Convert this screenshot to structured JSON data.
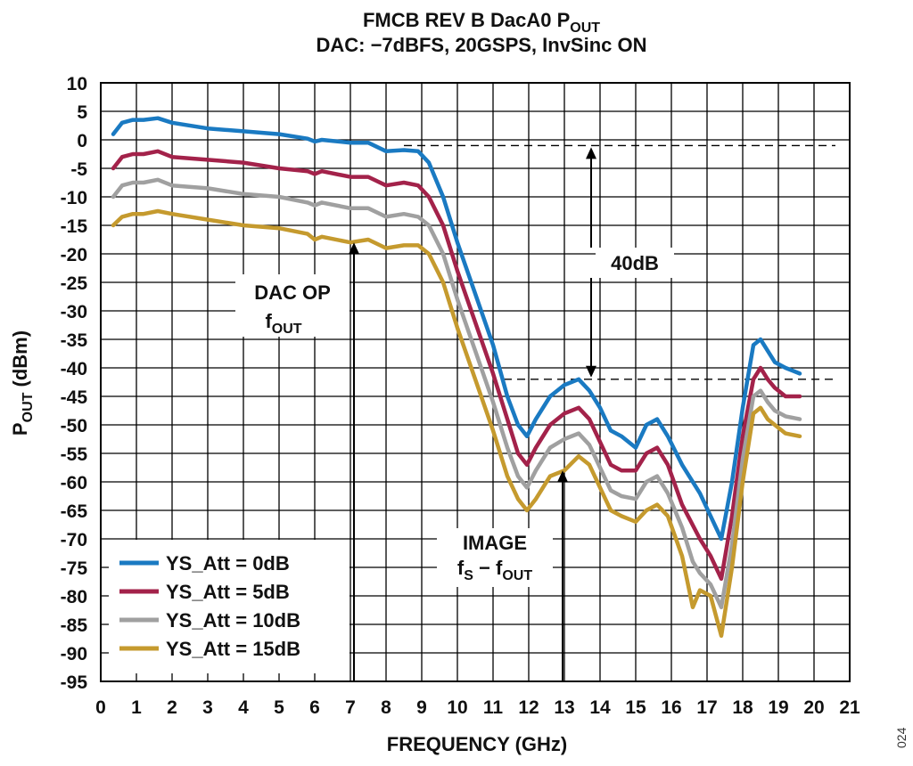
{
  "chart_data": {
    "type": "line",
    "title": "FMCB REV B DacA0 P",
    "title_sub": "OUT",
    "subtitle": "DAC: −7dBFS, 20GSPS, InvSinc ON",
    "xlabel": "FREQUENCY (GHz)",
    "ylabel_main": "P",
    "ylabel_sub": "OUT",
    "ylabel_unit": " (dBm)",
    "xlim": [
      0,
      21
    ],
    "ylim": [
      -95,
      10
    ],
    "xticks": [
      0,
      1,
      2,
      3,
      4,
      5,
      6,
      7,
      8,
      9,
      10,
      11,
      12,
      13,
      14,
      15,
      16,
      17,
      18,
      19,
      20,
      21
    ],
    "yticks": [
      10,
      5,
      0,
      -5,
      -10,
      -15,
      -20,
      -25,
      -30,
      -35,
      -40,
      -45,
      -50,
      -55,
      -60,
      -65,
      -70,
      -75,
      -80,
      -85,
      -90,
      -95
    ],
    "grid": true,
    "legend_position": "bottom-left",
    "series": [
      {
        "name": "YS_Att = 0dB",
        "color": "#1a7ac2",
        "x": [
          0.35,
          0.6,
          0.9,
          1.2,
          1.6,
          2,
          3,
          4,
          5,
          5.8,
          6,
          6.2,
          7,
          7.5,
          8,
          8.5,
          8.9,
          9.2,
          9.6,
          10,
          10.5,
          11,
          11.4,
          11.7,
          11.95,
          12.2,
          12.6,
          13,
          13.4,
          13.7,
          14,
          14.3,
          14.6,
          15,
          15.3,
          15.6,
          15.9,
          16.3,
          16.8,
          17.1,
          17.4,
          17.7,
          18,
          18.3,
          18.5,
          18.7,
          18.9,
          19.2,
          19.6
        ],
        "y": [
          1,
          3,
          3.5,
          3.5,
          3.8,
          3,
          2,
          1.5,
          1,
          0.2,
          -0.3,
          0,
          -0.5,
          -0.5,
          -2,
          -1.8,
          -2,
          -4,
          -10,
          -18,
          -27,
          -36,
          -45,
          -50,
          -52,
          -49,
          -45,
          -43,
          -42,
          -44,
          -47,
          -51,
          -52,
          -54,
          -50,
          -49,
          -52,
          -57,
          -62,
          -66,
          -70,
          -60,
          -47,
          -36,
          -35,
          -37,
          -39,
          -40,
          -41
        ]
      },
      {
        "name": "YS_Att = 5dB",
        "color": "#a3224a",
        "x": [
          0.35,
          0.6,
          0.9,
          1.2,
          1.6,
          2,
          3,
          4,
          5,
          5.8,
          6,
          6.2,
          7,
          7.5,
          8,
          8.5,
          8.9,
          9.2,
          9.6,
          10,
          10.5,
          11,
          11.4,
          11.7,
          11.95,
          12.2,
          12.6,
          13,
          13.4,
          13.7,
          14,
          14.3,
          14.6,
          15,
          15.3,
          15.6,
          15.9,
          16.3,
          16.8,
          17.1,
          17.4,
          17.7,
          18,
          18.3,
          18.5,
          18.7,
          18.9,
          19.2,
          19.6
        ],
        "y": [
          -5,
          -3,
          -2.5,
          -2.5,
          -2,
          -3,
          -3.5,
          -4,
          -5,
          -5.5,
          -6,
          -5.5,
          -6.5,
          -6.5,
          -8,
          -7.5,
          -8,
          -10,
          -15,
          -23,
          -32,
          -41,
          -49,
          -55,
          -57,
          -54,
          -50,
          -48,
          -47,
          -49,
          -53,
          -57,
          -58,
          -58,
          -55,
          -54,
          -57,
          -64,
          -70,
          -73,
          -77,
          -66,
          -52,
          -42,
          -40,
          -42,
          -43.5,
          -45,
          -45
        ]
      },
      {
        "name": "YS_Att = 10dB",
        "color": "#a0a0a0",
        "x": [
          0.35,
          0.6,
          0.9,
          1.2,
          1.6,
          2,
          3,
          4,
          5,
          5.8,
          6,
          6.2,
          7,
          7.5,
          8,
          8.5,
          8.9,
          9.2,
          9.6,
          10,
          10.5,
          11,
          11.4,
          11.7,
          11.95,
          12.2,
          12.6,
          13,
          13.4,
          13.7,
          14,
          14.3,
          14.6,
          15,
          15.3,
          15.6,
          15.9,
          16.3,
          16.6,
          16.8,
          17.1,
          17.4,
          17.7,
          18,
          18.3,
          18.5,
          18.7,
          18.9,
          19.2,
          19.6
        ],
        "y": [
          -10,
          -8,
          -7.5,
          -7.5,
          -7,
          -8,
          -8.5,
          -9.5,
          -10,
          -11,
          -11.5,
          -11,
          -12,
          -12,
          -13.5,
          -13,
          -13.5,
          -15,
          -20,
          -28,
          -37,
          -46,
          -54,
          -59,
          -61,
          -58,
          -54,
          -52.5,
          -51.5,
          -53.5,
          -57.5,
          -61.5,
          -62.5,
          -63,
          -60,
          -59,
          -62,
          -68,
          -74,
          -76,
          -78,
          -82,
          -71,
          -56,
          -45,
          -44,
          -46,
          -47.5,
          -48.5,
          -49
        ]
      },
      {
        "name": "YS_Att = 15dB",
        "color": "#c59a2e",
        "x": [
          0.35,
          0.6,
          0.9,
          1.2,
          1.6,
          2,
          3,
          4,
          5,
          5.8,
          6,
          6.2,
          7,
          7.5,
          8,
          8.5,
          8.9,
          9.2,
          9.6,
          10,
          10.5,
          11,
          11.4,
          11.7,
          11.95,
          12.2,
          12.6,
          13,
          13.4,
          13.7,
          14,
          14.3,
          14.6,
          15,
          15.3,
          15.6,
          15.9,
          16.3,
          16.6,
          16.8,
          17.1,
          17.4,
          17.7,
          18,
          18.3,
          18.5,
          18.7,
          18.9,
          19.2,
          19.6
        ],
        "y": [
          -15,
          -13.5,
          -13,
          -13,
          -12.5,
          -13,
          -14,
          -15,
          -15.5,
          -16.5,
          -17.5,
          -17,
          -18,
          -17.5,
          -19,
          -18.5,
          -18.5,
          -20,
          -25,
          -33,
          -42,
          -51,
          -59,
          -63,
          -65,
          -63,
          -59,
          -58,
          -55.5,
          -57,
          -61,
          -65,
          -66,
          -67,
          -65,
          -64,
          -66,
          -73,
          -82,
          -79,
          -80,
          -87,
          -75,
          -60,
          -48,
          -47,
          -49,
          -50,
          -51.5,
          -52
        ]
      }
    ],
    "annotations": {
      "dac_op_line1": "DAC OP",
      "dac_op_line2_main": "f",
      "dac_op_line2_sub": "OUT",
      "image_line1": "IMAGE",
      "image_line2_f": "f",
      "image_line2_s": "S",
      "image_line2_mid": " − f",
      "image_line2_out": "OUT",
      "delta_label": "40dB",
      "ref_level_top": -1,
      "ref_level_bottom": -42,
      "ref_top_x_start": 8.5,
      "ref_bottom_x_start": 11.3,
      "ref_x_end": 20.6,
      "dac_op_arrow_x": 7.1,
      "dac_op_arrow_tip_y": -18,
      "image_arrow_x": 12.95,
      "image_arrow_tip_y": -58,
      "delta_arrow_x": 13.75
    },
    "figure_number": "024"
  }
}
